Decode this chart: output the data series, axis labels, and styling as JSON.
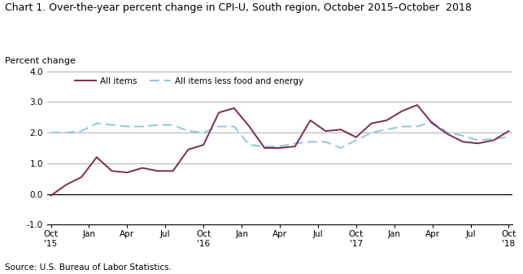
{
  "title": "Chart 1. Over-the-year percent change in CPI-U, South region, October 2015–October  2018",
  "ylabel": "Percent change",
  "source": "Source: U.S. Bureau of Labor Statistics.",
  "ylim": [
    -1.0,
    4.0
  ],
  "yticks": [
    -1.0,
    0.0,
    1.0,
    2.0,
    3.0,
    4.0
  ],
  "x_labels": [
    "Oct\n'15",
    "Jan",
    "Apr",
    "Jul",
    "Oct\n'16",
    "Jan",
    "Apr",
    "Jul",
    "Oct\n'17",
    "Jan",
    "Apr",
    "Jul",
    "Oct\n'18"
  ],
  "x_positions": [
    0,
    3,
    6,
    9,
    12,
    15,
    18,
    21,
    24,
    27,
    30,
    33,
    36
  ],
  "all_items": {
    "label": "All items",
    "color": "#7b2d4e",
    "linewidth": 1.4,
    "values": [
      -0.05,
      0.3,
      0.55,
      1.2,
      0.75,
      0.7,
      0.85,
      0.75,
      0.75,
      1.45,
      1.6,
      2.65,
      2.8,
      2.2,
      1.5,
      1.5,
      1.55,
      2.4,
      2.05,
      2.1,
      1.85,
      2.3,
      2.4,
      2.7,
      2.9,
      2.3,
      1.95,
      1.7,
      1.65,
      1.75,
      2.05
    ]
  },
  "all_items_less": {
    "label": "All items less food and energy",
    "color": "#92c5de",
    "linewidth": 1.4,
    "values": [
      2.0,
      2.0,
      2.05,
      2.3,
      2.25,
      2.2,
      2.2,
      2.25,
      2.25,
      2.05,
      2.0,
      2.2,
      2.2,
      1.6,
      1.55,
      1.55,
      1.65,
      1.7,
      1.7,
      1.5,
      1.75,
      2.0,
      2.1,
      2.2,
      2.2,
      2.35,
      2.0,
      1.9,
      1.75,
      1.8,
      1.85
    ]
  },
  "background_color": "#ffffff",
  "grid_color": "#b0b0b0",
  "tick_color": "#000000",
  "title_fontsize": 9.0,
  "label_fontsize": 8.0,
  "tick_fontsize": 7.5,
  "source_fontsize": 7.5
}
